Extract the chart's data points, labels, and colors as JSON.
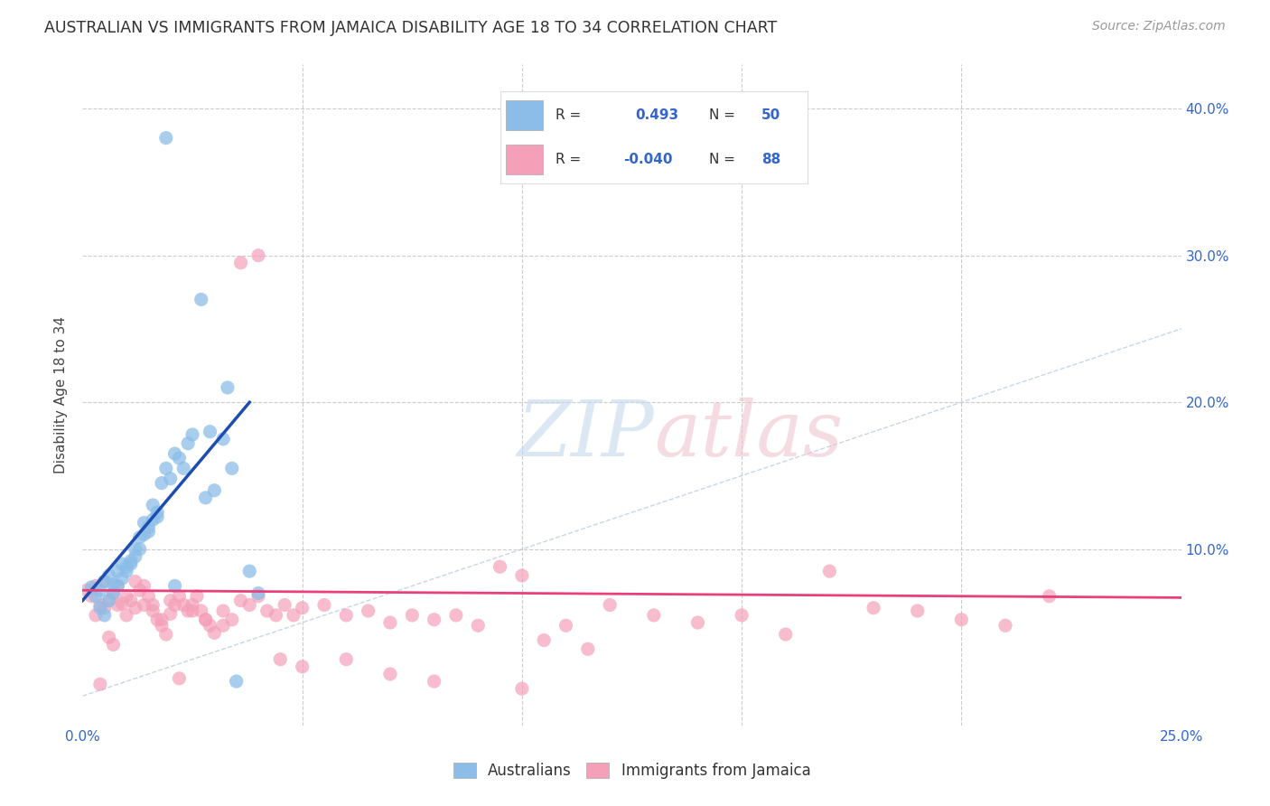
{
  "title": "AUSTRALIAN VS IMMIGRANTS FROM JAMAICA DISABILITY AGE 18 TO 34 CORRELATION CHART",
  "source": "Source: ZipAtlas.com",
  "ylabel": "Disability Age 18 to 34",
  "xlim": [
    0.0,
    0.25
  ],
  "ylim": [
    -0.02,
    0.43
  ],
  "legend_labels": [
    "Australians",
    "Immigrants from Jamaica"
  ],
  "blue_color": "#8BBDE8",
  "pink_color": "#F4A0B8",
  "blue_line_color": "#1E4DB0",
  "pink_line_color": "#E8407A",
  "diagonal_color": "#BBCCDD",
  "blue_scatter_x": [
    0.002,
    0.003,
    0.004,
    0.005,
    0.006,
    0.007,
    0.008,
    0.009,
    0.01,
    0.011,
    0.012,
    0.013,
    0.014,
    0.015,
    0.016,
    0.017,
    0.018,
    0.019,
    0.02,
    0.021,
    0.022,
    0.023,
    0.024,
    0.025,
    0.004,
    0.005,
    0.006,
    0.007,
    0.008,
    0.009,
    0.01,
    0.011,
    0.012,
    0.013,
    0.014,
    0.015,
    0.016,
    0.017,
    0.028,
    0.03,
    0.032,
    0.034,
    0.027,
    0.033,
    0.019,
    0.035,
    0.038,
    0.029,
    0.021,
    0.04
  ],
  "blue_scatter_y": [
    0.074,
    0.068,
    0.072,
    0.078,
    0.082,
    0.076,
    0.085,
    0.09,
    0.088,
    0.092,
    0.1,
    0.108,
    0.118,
    0.112,
    0.13,
    0.122,
    0.145,
    0.155,
    0.148,
    0.165,
    0.162,
    0.155,
    0.172,
    0.178,
    0.06,
    0.055,
    0.065,
    0.07,
    0.075,
    0.08,
    0.085,
    0.09,
    0.095,
    0.1,
    0.11,
    0.115,
    0.12,
    0.125,
    0.135,
    0.14,
    0.175,
    0.155,
    0.27,
    0.21,
    0.38,
    0.01,
    0.085,
    0.18,
    0.075,
    0.07
  ],
  "pink_scatter_x": [
    0.001,
    0.002,
    0.003,
    0.004,
    0.005,
    0.006,
    0.007,
    0.008,
    0.009,
    0.01,
    0.011,
    0.012,
    0.013,
    0.014,
    0.015,
    0.016,
    0.017,
    0.018,
    0.019,
    0.02,
    0.021,
    0.022,
    0.023,
    0.024,
    0.025,
    0.026,
    0.027,
    0.028,
    0.029,
    0.03,
    0.032,
    0.034,
    0.036,
    0.038,
    0.04,
    0.042,
    0.044,
    0.046,
    0.048,
    0.05,
    0.055,
    0.06,
    0.065,
    0.07,
    0.075,
    0.08,
    0.085,
    0.09,
    0.095,
    0.1,
    0.105,
    0.11,
    0.115,
    0.12,
    0.13,
    0.14,
    0.15,
    0.16,
    0.17,
    0.18,
    0.19,
    0.2,
    0.21,
    0.22,
    0.003,
    0.004,
    0.005,
    0.006,
    0.007,
    0.008,
    0.01,
    0.012,
    0.014,
    0.016,
    0.018,
    0.02,
    0.022,
    0.025,
    0.028,
    0.032,
    0.036,
    0.04,
    0.045,
    0.05,
    0.06,
    0.07,
    0.08,
    0.1
  ],
  "pink_scatter_y": [
    0.072,
    0.068,
    0.075,
    0.062,
    0.078,
    0.065,
    0.07,
    0.075,
    0.063,
    0.068,
    0.065,
    0.078,
    0.072,
    0.062,
    0.068,
    0.058,
    0.052,
    0.048,
    0.042,
    0.065,
    0.062,
    0.068,
    0.062,
    0.058,
    0.062,
    0.068,
    0.058,
    0.052,
    0.048,
    0.043,
    0.058,
    0.052,
    0.065,
    0.062,
    0.068,
    0.058,
    0.055,
    0.062,
    0.055,
    0.06,
    0.062,
    0.055,
    0.058,
    0.05,
    0.055,
    0.052,
    0.055,
    0.048,
    0.088,
    0.082,
    0.038,
    0.048,
    0.032,
    0.062,
    0.055,
    0.05,
    0.055,
    0.042,
    0.085,
    0.06,
    0.058,
    0.052,
    0.048,
    0.068,
    0.055,
    0.008,
    0.06,
    0.04,
    0.035,
    0.062,
    0.055,
    0.06,
    0.075,
    0.062,
    0.052,
    0.056,
    0.012,
    0.058,
    0.052,
    0.048,
    0.295,
    0.3,
    0.025,
    0.02,
    0.025,
    0.015,
    0.01,
    0.005
  ]
}
